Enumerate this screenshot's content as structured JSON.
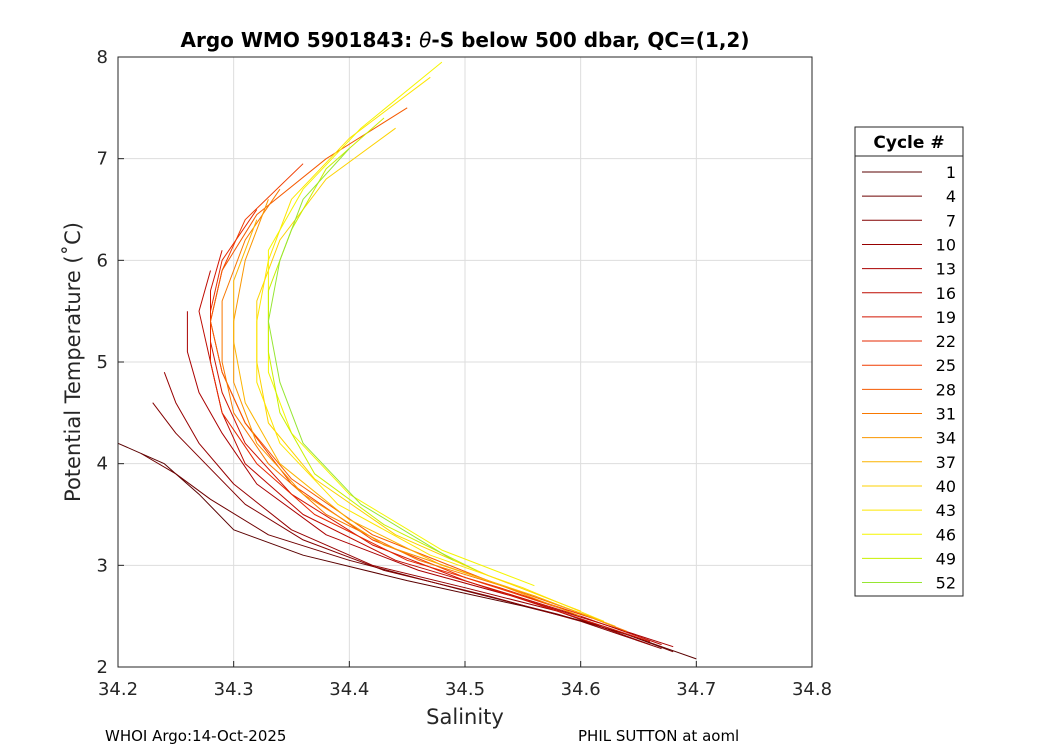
{
  "chart_data": {
    "type": "line",
    "title_prefix": "Argo WMO 5901843: ",
    "title_theta": "θ",
    "title_suffix": "-S below 500 dbar,  QC=(1,2)",
    "xlabel": "Salinity",
    "ylabel": "Potential Temperature (˚C)",
    "xlim": [
      34.2,
      34.8
    ],
    "ylim": [
      2,
      8
    ],
    "xticks": [
      "34.2",
      "34.3",
      "34.4",
      "34.5",
      "34.6",
      "34.7",
      "34.8"
    ],
    "yticks": [
      "2",
      "3",
      "4",
      "5",
      "6",
      "7",
      "8"
    ],
    "grid": true,
    "legend_title": "Cycle #",
    "legend_position": "right",
    "legend_entries": [
      {
        "label": "1",
        "color": "#5a0000"
      },
      {
        "label": "4",
        "color": "#6e0000"
      },
      {
        "label": "7",
        "color": "#820000"
      },
      {
        "label": "10",
        "color": "#960000"
      },
      {
        "label": "13",
        "color": "#aa0000"
      },
      {
        "label": "16",
        "color": "#be0a00"
      },
      {
        "label": "19",
        "color": "#d21400"
      },
      {
        "label": "22",
        "color": "#e62800"
      },
      {
        "label": "25",
        "color": "#f03c00"
      },
      {
        "label": "28",
        "color": "#f55a00"
      },
      {
        "label": "31",
        "color": "#f87800"
      },
      {
        "label": "34",
        "color": "#fa9600"
      },
      {
        "label": "37",
        "color": "#fcb400"
      },
      {
        "label": "40",
        "color": "#fdd200"
      },
      {
        "label": "43",
        "color": "#fee600"
      },
      {
        "label": "46",
        "color": "#f5f500"
      },
      {
        "label": "49",
        "color": "#c8f000"
      },
      {
        "label": "52",
        "color": "#96e632"
      }
    ],
    "series": [
      {
        "name": "1",
        "color": "#5a0000",
        "points": [
          [
            34.2,
            4.2
          ],
          [
            34.24,
            4.0
          ],
          [
            34.27,
            3.7
          ],
          [
            34.3,
            3.35
          ],
          [
            34.36,
            3.1
          ],
          [
            34.45,
            2.85
          ],
          [
            34.55,
            2.6
          ],
          [
            34.62,
            2.4
          ],
          [
            34.67,
            2.2
          ],
          [
            34.7,
            2.08
          ]
        ]
      },
      {
        "name": "4",
        "color": "#6e0000",
        "points": [
          [
            34.22,
            4.1
          ],
          [
            34.25,
            3.9
          ],
          [
            34.28,
            3.65
          ],
          [
            34.33,
            3.3
          ],
          [
            34.4,
            3.05
          ],
          [
            34.5,
            2.75
          ],
          [
            34.58,
            2.52
          ],
          [
            34.64,
            2.32
          ],
          [
            34.68,
            2.15
          ]
        ]
      },
      {
        "name": "7",
        "color": "#820000",
        "points": [
          [
            34.23,
            4.6
          ],
          [
            34.25,
            4.3
          ],
          [
            34.28,
            3.95
          ],
          [
            34.31,
            3.6
          ],
          [
            34.36,
            3.25
          ],
          [
            34.43,
            2.95
          ],
          [
            34.52,
            2.7
          ],
          [
            34.6,
            2.45
          ],
          [
            34.67,
            2.18
          ]
        ]
      },
      {
        "name": "10",
        "color": "#960000",
        "points": [
          [
            34.24,
            4.9
          ],
          [
            34.25,
            4.6
          ],
          [
            34.27,
            4.2
          ],
          [
            34.3,
            3.8
          ],
          [
            34.35,
            3.35
          ],
          [
            34.42,
            3.0
          ],
          [
            34.5,
            2.78
          ],
          [
            34.58,
            2.55
          ],
          [
            34.66,
            2.22
          ]
        ]
      },
      {
        "name": "13",
        "color": "#aa0000",
        "points": [
          [
            34.26,
            5.5
          ],
          [
            34.26,
            5.1
          ],
          [
            34.27,
            4.7
          ],
          [
            34.29,
            4.3
          ],
          [
            34.32,
            3.8
          ],
          [
            34.38,
            3.3
          ],
          [
            34.46,
            2.95
          ],
          [
            34.54,
            2.7
          ],
          [
            34.62,
            2.42
          ],
          [
            34.68,
            2.2
          ]
        ]
      },
      {
        "name": "16",
        "color": "#be0a00",
        "points": [
          [
            34.28,
            5.9
          ],
          [
            34.27,
            5.5
          ],
          [
            34.28,
            5.0
          ],
          [
            34.29,
            4.5
          ],
          [
            34.31,
            4.0
          ],
          [
            34.36,
            3.5
          ],
          [
            34.44,
            3.05
          ],
          [
            34.52,
            2.78
          ],
          [
            34.6,
            2.5
          ],
          [
            34.67,
            2.22
          ]
        ]
      },
      {
        "name": "19",
        "color": "#d21400",
        "points": [
          [
            34.29,
            6.1
          ],
          [
            34.28,
            5.7
          ],
          [
            34.28,
            5.2
          ],
          [
            34.29,
            4.7
          ],
          [
            34.31,
            4.2
          ],
          [
            34.35,
            3.7
          ],
          [
            34.42,
            3.2
          ],
          [
            34.5,
            2.85
          ],
          [
            34.58,
            2.55
          ],
          [
            34.66,
            2.25
          ]
        ]
      },
      {
        "name": "22",
        "color": "#e62800",
        "points": [
          [
            34.32,
            6.5
          ],
          [
            34.29,
            6.0
          ],
          [
            34.28,
            5.5
          ],
          [
            34.28,
            5.0
          ],
          [
            34.29,
            4.5
          ],
          [
            34.32,
            4.0
          ],
          [
            34.37,
            3.5
          ],
          [
            34.45,
            3.05
          ],
          [
            34.53,
            2.78
          ],
          [
            34.61,
            2.48
          ]
        ]
      },
      {
        "name": "25",
        "color": "#f03c00",
        "points": [
          [
            34.36,
            6.95
          ],
          [
            34.31,
            6.4
          ],
          [
            34.29,
            5.9
          ],
          [
            34.28,
            5.4
          ],
          [
            34.29,
            4.9
          ],
          [
            34.31,
            4.4
          ],
          [
            34.35,
            3.8
          ],
          [
            34.42,
            3.25
          ],
          [
            34.5,
            2.88
          ],
          [
            34.59,
            2.55
          ]
        ]
      },
      {
        "name": "28",
        "color": "#f55a00",
        "points": [
          [
            34.45,
            7.5
          ],
          [
            34.38,
            7.0
          ],
          [
            34.32,
            6.45
          ],
          [
            34.29,
            5.9
          ],
          [
            34.28,
            5.4
          ],
          [
            34.29,
            4.9
          ],
          [
            34.31,
            4.4
          ],
          [
            34.35,
            3.85
          ],
          [
            34.42,
            3.3
          ],
          [
            34.52,
            2.85
          ],
          [
            34.62,
            2.45
          ]
        ]
      },
      {
        "name": "31",
        "color": "#f87800",
        "points": [
          [
            34.34,
            6.7
          ],
          [
            34.31,
            6.2
          ],
          [
            34.29,
            5.6
          ],
          [
            34.29,
            5.0
          ],
          [
            34.3,
            4.5
          ],
          [
            34.33,
            4.0
          ],
          [
            34.38,
            3.5
          ],
          [
            34.46,
            3.05
          ],
          [
            34.56,
            2.7
          ],
          [
            34.64,
            2.35
          ]
        ]
      },
      {
        "name": "34",
        "color": "#fa9600",
        "points": [
          [
            34.33,
            6.6
          ],
          [
            34.31,
            6.0
          ],
          [
            34.3,
            5.4
          ],
          [
            34.3,
            4.8
          ],
          [
            34.32,
            4.2
          ],
          [
            34.36,
            3.7
          ],
          [
            34.43,
            3.2
          ],
          [
            34.52,
            2.85
          ],
          [
            34.6,
            2.5
          ]
        ]
      },
      {
        "name": "37",
        "color": "#fcb400",
        "points": [
          [
            34.32,
            6.4
          ],
          [
            34.3,
            5.8
          ],
          [
            34.3,
            5.2
          ],
          [
            34.31,
            4.6
          ],
          [
            34.34,
            4.0
          ],
          [
            34.4,
            3.45
          ],
          [
            34.48,
            3.0
          ],
          [
            34.56,
            2.7
          ],
          [
            34.63,
            2.4
          ]
        ]
      },
      {
        "name": "40",
        "color": "#fdd200",
        "points": [
          [
            34.44,
            7.3
          ],
          [
            34.38,
            6.8
          ],
          [
            34.34,
            6.2
          ],
          [
            34.32,
            5.6
          ],
          [
            34.32,
            5.0
          ],
          [
            34.33,
            4.4
          ],
          [
            34.37,
            3.85
          ],
          [
            34.44,
            3.3
          ],
          [
            34.52,
            2.9
          ],
          [
            34.6,
            2.55
          ]
        ]
      },
      {
        "name": "43",
        "color": "#fee600",
        "points": [
          [
            34.47,
            7.8
          ],
          [
            34.4,
            7.2
          ],
          [
            34.35,
            6.6
          ],
          [
            34.33,
            6.0
          ],
          [
            34.32,
            5.4
          ],
          [
            34.32,
            4.8
          ],
          [
            34.34,
            4.2
          ],
          [
            34.39,
            3.6
          ],
          [
            34.47,
            3.1
          ],
          [
            34.55,
            2.78
          ],
          [
            34.62,
            2.45
          ]
        ]
      },
      {
        "name": "46",
        "color": "#f5f500",
        "points": [
          [
            34.48,
            7.95
          ],
          [
            34.41,
            7.3
          ],
          [
            34.36,
            6.7
          ],
          [
            34.33,
            6.1
          ],
          [
            34.33,
            5.5
          ],
          [
            34.33,
            4.9
          ],
          [
            34.35,
            4.3
          ],
          [
            34.4,
            3.7
          ],
          [
            34.48,
            3.15
          ],
          [
            34.56,
            2.8
          ]
        ]
      },
      {
        "name": "49",
        "color": "#c8f000",
        "points": [
          [
            34.43,
            7.4
          ],
          [
            34.38,
            6.9
          ],
          [
            34.35,
            6.3
          ],
          [
            34.33,
            5.7
          ],
          [
            34.33,
            5.1
          ],
          [
            34.34,
            4.5
          ],
          [
            34.37,
            3.9
          ],
          [
            34.43,
            3.4
          ],
          [
            34.51,
            2.95
          ]
        ]
      },
      {
        "name": "52",
        "color": "#96e632",
        "points": [
          [
            34.4,
            7.1
          ],
          [
            34.36,
            6.6
          ],
          [
            34.34,
            6.0
          ],
          [
            34.33,
            5.4
          ],
          [
            34.34,
            4.8
          ],
          [
            34.36,
            4.2
          ],
          [
            34.41,
            3.6
          ],
          [
            34.49,
            3.05
          ]
        ]
      }
    ]
  },
  "footer": {
    "left": "WHOI Argo:14-Oct-2025",
    "right": "PHIL SUTTON at aoml"
  }
}
